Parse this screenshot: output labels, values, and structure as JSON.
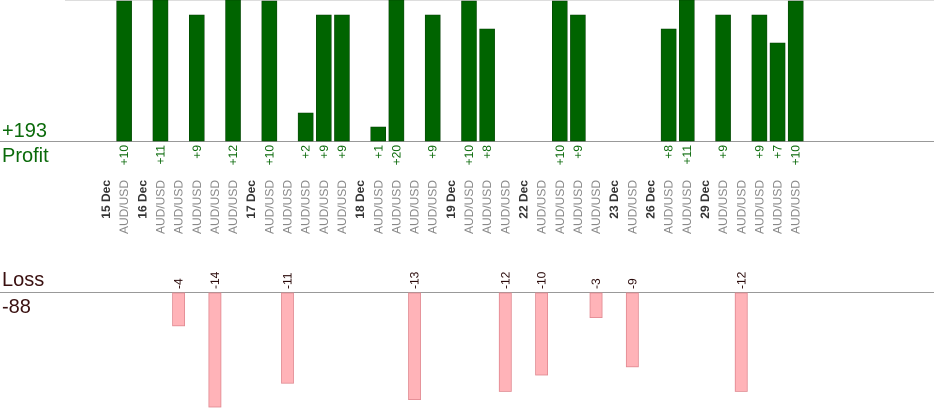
{
  "summary": {
    "profit_total": "+193",
    "profit_label": "Profit",
    "loss_label": "Loss",
    "loss_total": "-88"
  },
  "colors": {
    "profit_bar": "#006400",
    "profit_text": "#0a6a0a",
    "loss_bar": "#ffb3b8",
    "loss_text": "#2a0a0a",
    "date_text": "#333333",
    "pair_text": "#888888",
    "axis_line": "#999999"
  },
  "chart_data": {
    "type": "bar",
    "title": "",
    "xlabel": "",
    "ylabel": "",
    "grid": false,
    "slots": [
      {
        "kind": "date",
        "label": "15 Dec"
      },
      {
        "kind": "trade",
        "pair": "AUD/USD",
        "value": 10
      },
      {
        "kind": "date",
        "label": "16 Dec"
      },
      {
        "kind": "trade",
        "pair": "AUD/USD",
        "value": 11
      },
      {
        "kind": "trade",
        "pair": "AUD/USD",
        "value": -4
      },
      {
        "kind": "trade",
        "pair": "AUD/USD",
        "value": 9
      },
      {
        "kind": "trade",
        "pair": "AUD/USD",
        "value": -14
      },
      {
        "kind": "trade",
        "pair": "AUD/USD",
        "value": 12
      },
      {
        "kind": "date",
        "label": "17 Dec"
      },
      {
        "kind": "trade",
        "pair": "AUD/USD",
        "value": 10
      },
      {
        "kind": "trade",
        "pair": "AUD/USD",
        "value": -11
      },
      {
        "kind": "trade",
        "pair": "AUD/USD",
        "value": 2
      },
      {
        "kind": "trade",
        "pair": "AUD/USD",
        "value": 9
      },
      {
        "kind": "trade",
        "pair": "AUD/USD",
        "value": 9
      },
      {
        "kind": "date",
        "label": "18 Dec"
      },
      {
        "kind": "trade",
        "pair": "AUD/USD",
        "value": 1
      },
      {
        "kind": "trade",
        "pair": "AUD/USD",
        "value": 20
      },
      {
        "kind": "trade",
        "pair": "AUD/USD",
        "value": -13
      },
      {
        "kind": "trade",
        "pair": "AUD/USD",
        "value": 9
      },
      {
        "kind": "date",
        "label": "19 Dec"
      },
      {
        "kind": "trade",
        "pair": "AUD/USD",
        "value": 10
      },
      {
        "kind": "trade",
        "pair": "AUD/USD",
        "value": 8
      },
      {
        "kind": "trade",
        "pair": "AUD/USD",
        "value": -12
      },
      {
        "kind": "date",
        "label": "22 Dec"
      },
      {
        "kind": "trade",
        "pair": "AUD/USD",
        "value": -10
      },
      {
        "kind": "trade",
        "pair": "AUD/USD",
        "value": 10
      },
      {
        "kind": "trade",
        "pair": "AUD/USD",
        "value": 9
      },
      {
        "kind": "trade",
        "pair": "AUD/USD",
        "value": -3
      },
      {
        "kind": "date",
        "label": "23 Dec"
      },
      {
        "kind": "trade",
        "pair": "AUD/USD",
        "value": -9
      },
      {
        "kind": "date",
        "label": "26 Dec"
      },
      {
        "kind": "trade",
        "pair": "AUD/USD",
        "value": 8
      },
      {
        "kind": "trade",
        "pair": "AUD/USD",
        "value": 11
      },
      {
        "kind": "date",
        "label": "29 Dec"
      },
      {
        "kind": "trade",
        "pair": "AUD/USD",
        "value": 9
      },
      {
        "kind": "trade",
        "pair": "AUD/USD",
        "value": -12
      },
      {
        "kind": "trade",
        "pair": "AUD/USD",
        "value": 9
      },
      {
        "kind": "trade",
        "pair": "AUD/USD",
        "value": 7
      },
      {
        "kind": "trade",
        "pair": "AUD/USD",
        "value": 10
      }
    ]
  }
}
